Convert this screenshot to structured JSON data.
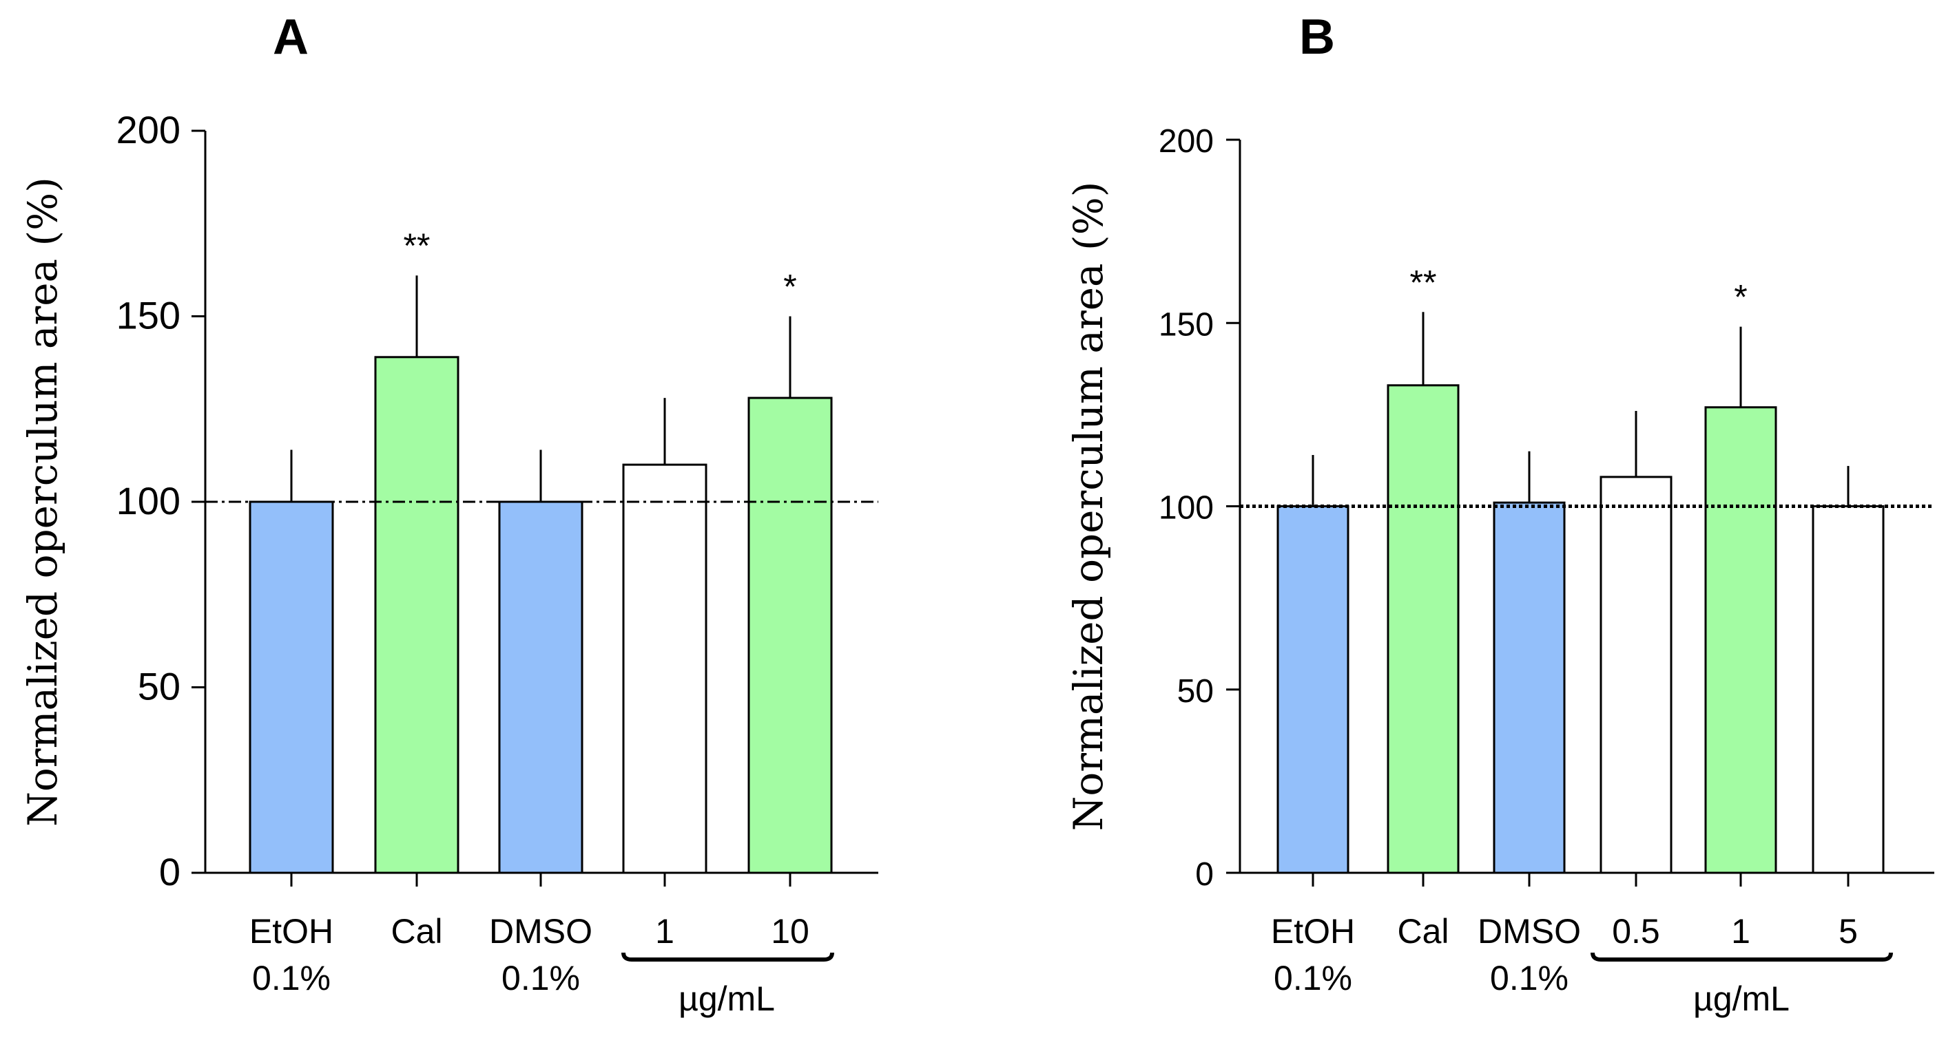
{
  "colors": {
    "blue": "#93bffa",
    "green": "#a3fca3",
    "white": "#ffffff",
    "axis": "#000000"
  },
  "chart_data": [
    {
      "panel": "A",
      "type": "bar",
      "title": "A",
      "ylabel": "Normalized operculum area (%)",
      "ylim": [
        0,
        200
      ],
      "yticks": [
        "0",
        "50",
        "100",
        "150",
        "200"
      ],
      "reference_line": 100,
      "reference_style": "dash-dot",
      "categories": [
        {
          "line1": "EtOH",
          "line2": "0.1%",
          "value": 100,
          "error": 14,
          "color": "blue",
          "sig": ""
        },
        {
          "line1": "Cal",
          "line2": "",
          "value": 139,
          "error": 22,
          "color": "green",
          "sig": "**"
        },
        {
          "line1": "DMSO",
          "line2": "0.1%",
          "value": 100,
          "error": 14,
          "color": "blue",
          "sig": ""
        },
        {
          "line1": "1",
          "line2": "",
          "value": 110,
          "error": 18,
          "color": "white",
          "sig": ""
        },
        {
          "line1": "10",
          "line2": "",
          "value": 128,
          "error": 22,
          "color": "green",
          "sig": "*"
        }
      ],
      "group_label": "µg/mL"
    },
    {
      "panel": "B",
      "type": "bar",
      "title": "B",
      "ylabel": "Normalized operculum area (%)",
      "ylim": [
        0,
        200
      ],
      "yticks": [
        "0",
        "50",
        "100",
        "150",
        "200"
      ],
      "reference_line": 100,
      "reference_style": "dotted",
      "categories": [
        {
          "line1": "EtOH",
          "line2": "0.1%",
          "value": 100,
          "error": 14,
          "color": "blue",
          "sig": ""
        },
        {
          "line1": "Cal",
          "line2": "",
          "value": 133,
          "error": 20,
          "color": "green",
          "sig": "**"
        },
        {
          "line1": "DMSO",
          "line2": "0.1%",
          "value": 101,
          "error": 14,
          "color": "blue",
          "sig": ""
        },
        {
          "line1": "0.5",
          "line2": "",
          "value": 108,
          "error": 18,
          "color": "white",
          "sig": ""
        },
        {
          "line1": "1",
          "line2": "",
          "value": 127,
          "error": 22,
          "color": "green",
          "sig": "*"
        },
        {
          "line1": "5",
          "line2": "",
          "value": 100,
          "error": 11,
          "color": "white",
          "sig": ""
        }
      ],
      "group_label": "µg/mL"
    }
  ]
}
